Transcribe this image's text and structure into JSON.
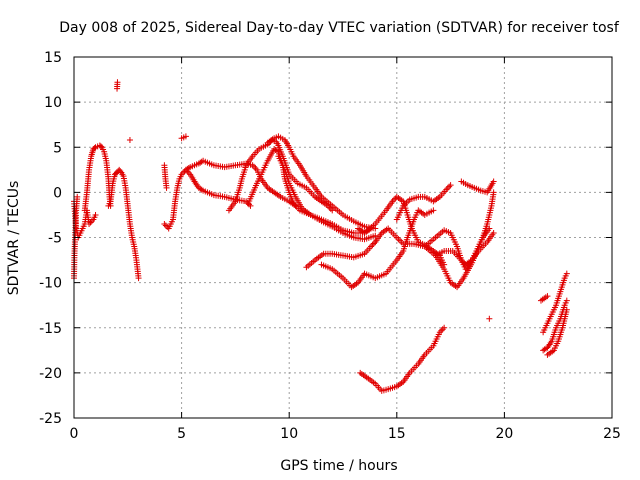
{
  "chart_data": {
    "type": "scatter",
    "title": "Day 008 of 2025, Sidereal Day-to-day VTEC variation (SDTVAR) for receiver tosf",
    "xlabel": "GPS time / hours",
    "ylabel": "SDTVAR / TECUs",
    "xlim": [
      0,
      25
    ],
    "ylim": [
      -25,
      15
    ],
    "xticks": [
      0,
      5,
      10,
      15,
      20,
      25
    ],
    "yticks": [
      -25,
      -20,
      -15,
      -10,
      -5,
      0,
      5,
      10,
      15
    ],
    "xtick_labels": [
      "0",
      "5",
      "10",
      "15",
      "20",
      "25"
    ],
    "ytick_labels": [
      "-25",
      "-20",
      "-15",
      "-10",
      "-5",
      "0",
      "5",
      "10",
      "15"
    ],
    "grid": true,
    "marker": "+",
    "color": "#e00000",
    "series": [
      {
        "name": "track-a",
        "points": [
          [
            0,
            -1
          ],
          [
            0.1,
            -4
          ],
          [
            0.2,
            -5
          ],
          [
            0.3,
            -4.5
          ],
          [
            0.5,
            -3.5
          ],
          [
            0.6,
            -2
          ],
          [
            0.7,
            -3.5
          ],
          [
            0.9,
            -3
          ],
          [
            1,
            -2.5
          ]
        ]
      },
      {
        "name": "track-b",
        "points": [
          [
            0,
            -9.5
          ],
          [
            0.02,
            -7
          ],
          [
            0.05,
            -5
          ],
          [
            0.1,
            -2
          ],
          [
            0.15,
            -0.5
          ]
        ]
      },
      {
        "name": "track-c",
        "points": [
          [
            0.5,
            -2
          ],
          [
            0.6,
            0
          ],
          [
            0.7,
            2.5
          ],
          [
            0.8,
            4
          ],
          [
            0.9,
            4.8
          ],
          [
            1.0,
            5
          ],
          [
            1.1,
            5.1
          ],
          [
            1.2,
            5.2
          ],
          [
            1.3,
            5
          ],
          [
            1.4,
            4.5
          ],
          [
            1.5,
            3.5
          ],
          [
            1.6,
            1.5
          ],
          [
            1.65,
            -0.5
          ],
          [
            1.7,
            -1.5
          ]
        ]
      },
      {
        "name": "track-d",
        "points": [
          [
            1.6,
            -1.5
          ],
          [
            1.7,
            -1
          ],
          [
            1.8,
            1
          ],
          [
            1.9,
            2
          ],
          [
            2,
            2.2
          ],
          [
            2.1,
            2.5
          ],
          [
            2.2,
            2.2
          ],
          [
            2.3,
            1.8
          ],
          [
            2.4,
            0.5
          ],
          [
            2.5,
            -1.5
          ],
          [
            2.6,
            -3.5
          ],
          [
            2.7,
            -5
          ],
          [
            2.8,
            -6
          ],
          [
            2.9,
            -7.5
          ],
          [
            3.0,
            -9.5
          ]
        ]
      },
      {
        "name": "track-e",
        "points": [
          [
            2,
            11.5
          ],
          [
            2.02,
            12.2
          ]
        ]
      },
      {
        "name": "track-f",
        "points": [
          [
            2.6,
            5.8
          ]
        ]
      },
      {
        "name": "track-g",
        "points": [
          [
            4.2,
            -3.5
          ],
          [
            4.4,
            -4
          ],
          [
            4.6,
            -3
          ],
          [
            4.7,
            -1
          ],
          [
            4.8,
            0.5
          ],
          [
            4.9,
            1.5
          ],
          [
            5,
            2
          ],
          [
            5.2,
            2.5
          ],
          [
            5.4,
            2
          ],
          [
            5.6,
            1.2
          ],
          [
            5.8,
            0.5
          ],
          [
            6,
            0.2
          ],
          [
            6.2,
            0
          ],
          [
            6.5,
            -0.3
          ],
          [
            7,
            -0.5
          ],
          [
            7.5,
            -0.8
          ],
          [
            8,
            -1
          ],
          [
            8.2,
            -1.5
          ]
        ]
      },
      {
        "name": "track-h",
        "points": [
          [
            4.2,
            3
          ],
          [
            4.25,
            1.5
          ],
          [
            4.3,
            0.5
          ]
        ]
      },
      {
        "name": "track-i",
        "points": [
          [
            5,
            6
          ],
          [
            5.2,
            6.2
          ]
        ]
      },
      {
        "name": "track-j",
        "points": [
          [
            5.2,
            2.5
          ],
          [
            5.4,
            2.8
          ],
          [
            5.6,
            3
          ],
          [
            5.8,
            3.2
          ],
          [
            6,
            3.5
          ],
          [
            6.2,
            3.3
          ],
          [
            6.5,
            3
          ],
          [
            7,
            2.8
          ],
          [
            7.5,
            3
          ],
          [
            8,
            3.2
          ],
          [
            8.3,
            3
          ],
          [
            8.5,
            2.5
          ],
          [
            8.7,
            1.5
          ],
          [
            9,
            0.5
          ],
          [
            9.3,
            0
          ],
          [
            9.6,
            -0.5
          ],
          [
            10,
            -1
          ],
          [
            10.3,
            -1.5
          ]
        ]
      },
      {
        "name": "track-k",
        "points": [
          [
            7.2,
            -2
          ],
          [
            7.5,
            -1
          ],
          [
            7.7,
            0.5
          ],
          [
            7.8,
            1.5
          ],
          [
            8,
            3
          ],
          [
            8.3,
            4
          ],
          [
            8.6,
            4.8
          ],
          [
            9,
            5.3
          ],
          [
            9.2,
            5.8
          ],
          [
            9.4,
            5.6
          ],
          [
            9.5,
            5.2
          ],
          [
            9.7,
            4
          ],
          [
            10,
            2
          ],
          [
            10.4,
            1
          ],
          [
            10.8,
            0.5
          ],
          [
            11.2,
            -0.5
          ],
          [
            11.5,
            -1
          ],
          [
            11.8,
            -1.5
          ],
          [
            12,
            -2
          ]
        ]
      },
      {
        "name": "track-l",
        "points": [
          [
            8.1,
            -1.2
          ],
          [
            8.5,
            1
          ],
          [
            9,
            3.5
          ],
          [
            9.3,
            4.8
          ],
          [
            9.5,
            4.5
          ],
          [
            9.7,
            3
          ],
          [
            9.8,
            1.5
          ],
          [
            10,
            0
          ],
          [
            10.2,
            -1.2
          ],
          [
            10.5,
            -2
          ],
          [
            11,
            -2.5
          ],
          [
            11.5,
            -3
          ],
          [
            12,
            -3.5
          ],
          [
            12.5,
            -4.2
          ],
          [
            13,
            -4.5
          ],
          [
            13.5,
            -4.5
          ],
          [
            13.8,
            -4
          ]
        ]
      },
      {
        "name": "track-m",
        "points": [
          [
            9,
            5.5
          ],
          [
            9.3,
            6
          ],
          [
            9.5,
            6.2
          ],
          [
            9.8,
            5.8
          ],
          [
            10,
            5
          ],
          [
            10.2,
            4
          ],
          [
            10.5,
            3
          ],
          [
            10.8,
            1.8
          ],
          [
            11.2,
            0.5
          ],
          [
            11.5,
            -0.5
          ],
          [
            12,
            -1.5
          ],
          [
            12.5,
            -2.5
          ],
          [
            13,
            -3.2
          ],
          [
            13.5,
            -3.8
          ],
          [
            14,
            -4
          ]
        ]
      },
      {
        "name": "track-n",
        "points": [
          [
            9.5,
            4
          ],
          [
            9.8,
            2.5
          ],
          [
            10,
            1
          ],
          [
            10.3,
            -0.5
          ],
          [
            10.6,
            -1.8
          ],
          [
            11,
            -2.5
          ],
          [
            11.5,
            -3.2
          ],
          [
            12,
            -3.8
          ],
          [
            12.5,
            -4.5
          ],
          [
            13,
            -5
          ],
          [
            13.5,
            -5.2
          ],
          [
            14,
            -4.8
          ]
        ]
      },
      {
        "name": "track-o",
        "points": [
          [
            10.8,
            -8.3
          ],
          [
            11.2,
            -7.5
          ],
          [
            11.6,
            -6.8
          ],
          [
            12,
            -6.8
          ],
          [
            12.5,
            -7
          ],
          [
            13,
            -7.2
          ],
          [
            13.5,
            -6.8
          ],
          [
            13.8,
            -6
          ],
          [
            14,
            -5.5
          ]
        ]
      },
      {
        "name": "track-p",
        "points": [
          [
            11.5,
            -8
          ],
          [
            12,
            -8.5
          ],
          [
            12.5,
            -9.5
          ],
          [
            12.9,
            -10.5
          ],
          [
            13.2,
            -10
          ],
          [
            13.5,
            -9
          ],
          [
            14,
            -9.5
          ],
          [
            14.5,
            -9
          ],
          [
            15,
            -7.5
          ],
          [
            15.3,
            -6.5
          ],
          [
            15.5,
            -5
          ],
          [
            15.8,
            -3
          ],
          [
            16,
            -2
          ],
          [
            16.3,
            -2.5
          ],
          [
            16.7,
            -2
          ]
        ]
      },
      {
        "name": "track-q",
        "points": [
          [
            13.2,
            -4
          ],
          [
            13.5,
            -4.5
          ],
          [
            14,
            -3.5
          ],
          [
            14.5,
            -2
          ],
          [
            14.8,
            -1
          ],
          [
            15,
            -0.5
          ],
          [
            15.3,
            -1
          ],
          [
            15.5,
            -2.5
          ],
          [
            15.7,
            -4
          ],
          [
            16,
            -5.5
          ],
          [
            16.3,
            -5.8
          ],
          [
            16.7,
            -6.5
          ],
          [
            17,
            -7
          ],
          [
            17.2,
            -8
          ]
        ]
      },
      {
        "name": "track-r",
        "points": [
          [
            13.3,
            -20
          ],
          [
            13.6,
            -20.5
          ],
          [
            14,
            -21.2
          ],
          [
            14.3,
            -22
          ],
          [
            14.6,
            -21.8
          ],
          [
            15,
            -21.5
          ],
          [
            15.3,
            -21
          ],
          [
            15.6,
            -20
          ],
          [
            16,
            -19
          ],
          [
            16.3,
            -18
          ],
          [
            16.7,
            -17
          ],
          [
            17,
            -15.5
          ],
          [
            17.2,
            -15
          ]
        ]
      },
      {
        "name": "track-s",
        "points": [
          [
            14,
            -5.5
          ],
          [
            14.3,
            -4.5
          ],
          [
            14.6,
            -4
          ],
          [
            15,
            -5
          ],
          [
            15.3,
            -5.7
          ],
          [
            15.8,
            -5.7
          ],
          [
            16.3,
            -6
          ],
          [
            16.8,
            -5
          ],
          [
            17.2,
            -4.2
          ],
          [
            17.5,
            -4.5
          ],
          [
            17.8,
            -6
          ],
          [
            18,
            -7.5
          ],
          [
            18.2,
            -8.5
          ],
          [
            18.5,
            -7.5
          ],
          [
            18.8,
            -6.5
          ],
          [
            19.2,
            -5.5
          ],
          [
            19.5,
            -4.5
          ]
        ]
      },
      {
        "name": "track-t",
        "points": [
          [
            15,
            -3
          ],
          [
            15.3,
            -1.5
          ],
          [
            15.6,
            -0.8
          ],
          [
            16,
            -0.5
          ],
          [
            16.3,
            -0.5
          ],
          [
            16.7,
            -1
          ],
          [
            17,
            -0.5
          ],
          [
            17.3,
            0.3
          ],
          [
            17.5,
            0.8
          ]
        ]
      },
      {
        "name": "track-u",
        "points": [
          [
            16.3,
            -6
          ],
          [
            16.8,
            -7
          ],
          [
            17.2,
            -6.5
          ],
          [
            17.6,
            -6.5
          ],
          [
            18,
            -7.5
          ],
          [
            18.2,
            -8
          ],
          [
            18.5,
            -7.5
          ],
          [
            18.8,
            -6
          ],
          [
            19,
            -5
          ],
          [
            19.3,
            -4
          ]
        ]
      },
      {
        "name": "track-v",
        "points": [
          [
            16.8,
            -7
          ],
          [
            17.2,
            -8.5
          ],
          [
            17.5,
            -10
          ],
          [
            17.8,
            -10.5
          ],
          [
            18.1,
            -9.5
          ],
          [
            18.5,
            -7.8
          ],
          [
            18.8,
            -6
          ],
          [
            19,
            -5
          ],
          [
            19.2,
            -3.5
          ],
          [
            19.4,
            -1.5
          ],
          [
            19.5,
            0
          ]
        ]
      },
      {
        "name": "track-w",
        "points": [
          [
            18,
            1.2
          ],
          [
            18.3,
            0.8
          ],
          [
            18.6,
            0.5
          ],
          [
            18.9,
            0.2
          ],
          [
            19.2,
            0
          ],
          [
            19.5,
            1.2
          ]
        ]
      },
      {
        "name": "track-x",
        "points": [
          [
            19.3,
            -14
          ]
        ]
      },
      {
        "name": "track-y",
        "points": [
          [
            21.7,
            -12
          ],
          [
            22,
            -11.5
          ]
        ]
      },
      {
        "name": "track-z",
        "points": [
          [
            21.8,
            -15.5
          ],
          [
            22.1,
            -14
          ],
          [
            22.4,
            -12.5
          ],
          [
            22.6,
            -11
          ],
          [
            22.8,
            -9.5
          ],
          [
            22.9,
            -9
          ]
        ]
      },
      {
        "name": "track-aa",
        "points": [
          [
            21.8,
            -17.5
          ],
          [
            22,
            -17.2
          ],
          [
            22.2,
            -16.5
          ],
          [
            22.4,
            -15
          ],
          [
            22.6,
            -14
          ],
          [
            22.8,
            -12.5
          ],
          [
            22.9,
            -12
          ]
        ]
      },
      {
        "name": "track-ab",
        "points": [
          [
            22,
            -18
          ],
          [
            22.3,
            -17.5
          ],
          [
            22.5,
            -16.5
          ],
          [
            22.7,
            -15
          ],
          [
            22.9,
            -13
          ]
        ]
      }
    ]
  }
}
